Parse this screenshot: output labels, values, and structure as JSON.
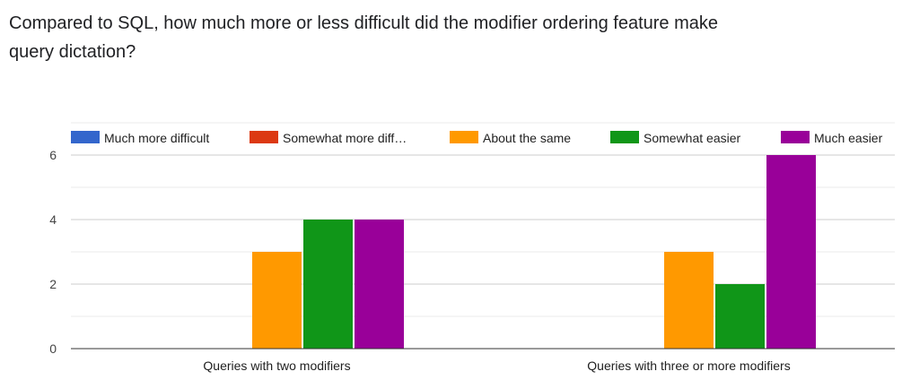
{
  "question": {
    "title": "Compared to SQL, how much more or less difficult did the modifier ordering feature make query dictation?"
  },
  "chart_data": {
    "type": "bar",
    "title": "",
    "xlabel": "",
    "ylabel": "",
    "ylim": [
      0,
      7
    ],
    "yticks": [
      0,
      2,
      4,
      6
    ],
    "grid": true,
    "legend_position": "top",
    "categories": [
      "Queries with two modifiers",
      "Queries with three or more modifiers"
    ],
    "series": [
      {
        "name": "Much more difficult",
        "legend_label": "Much more difficult",
        "color": "#3366cc",
        "values": [
          0,
          0
        ]
      },
      {
        "name": "Somewhat more difficult",
        "legend_label": "Somewhat more diff…",
        "color": "#dc3912",
        "values": [
          0,
          0
        ]
      },
      {
        "name": "About the same",
        "legend_label": "About the same",
        "color": "#ff9900",
        "values": [
          3,
          3
        ]
      },
      {
        "name": "Somewhat easier",
        "legend_label": "Somewhat easier",
        "color": "#109618",
        "values": [
          4,
          2
        ]
      },
      {
        "name": "Much easier",
        "legend_label": "Much easier",
        "color": "#990099",
        "values": [
          4,
          6
        ]
      }
    ]
  }
}
